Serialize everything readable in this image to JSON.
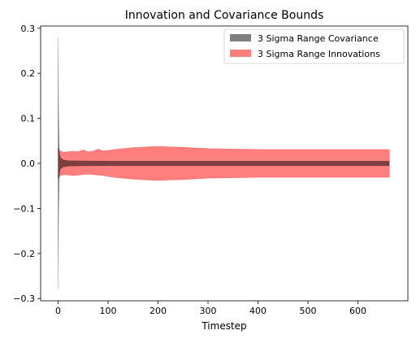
{
  "chart_data": {
    "type": "area",
    "title": "Innovation and Covariance Bounds",
    "xlabel": "Timestep",
    "ylabel": "",
    "xlim": [
      -35,
      700
    ],
    "ylim": [
      -0.305,
      0.305
    ],
    "xticks": [
      0,
      100,
      200,
      300,
      400,
      500,
      600
    ],
    "xtick_labels": [
      "0",
      "100",
      "200",
      "300",
      "400",
      "500",
      "600"
    ],
    "yticks": [
      0.3,
      0.2,
      0.1,
      0.0,
      -0.1,
      -0.2,
      -0.3
    ],
    "ytick_labels": [
      "0.3",
      "0.2",
      "0.1",
      "0.0",
      "−0.1",
      "−0.2",
      "−0.3"
    ],
    "grid": false,
    "legend_position": "top-right",
    "series": [
      {
        "name": "3 Sigma Range Covariance",
        "color": "#000000",
        "opacity": 0.5,
        "x": [
          0,
          1,
          2,
          3,
          5,
          10,
          20,
          50,
          100,
          200,
          300,
          400,
          500,
          600,
          663
        ],
        "upper": [
          0.28,
          0.11,
          0.04,
          0.02,
          0.012,
          0.008,
          0.006,
          0.0055,
          0.005,
          0.005,
          0.005,
          0.005,
          0.005,
          0.005,
          0.005
        ],
        "lower": [
          -0.28,
          -0.11,
          -0.04,
          -0.02,
          -0.012,
          -0.008,
          -0.006,
          -0.0055,
          -0.005,
          -0.005,
          -0.005,
          -0.005,
          -0.005,
          -0.005,
          -0.005
        ]
      },
      {
        "name": "3 Sigma Range Innovations",
        "color": "#ff0000",
        "opacity": 0.5,
        "x": [
          0,
          2,
          5,
          10,
          20,
          30,
          40,
          50,
          60,
          70,
          80,
          90,
          100,
          120,
          150,
          180,
          200,
          220,
          250,
          280,
          300,
          350,
          400,
          450,
          500,
          550,
          600,
          650,
          663
        ],
        "upper": [
          0.035,
          0.03,
          0.027,
          0.025,
          0.026,
          0.027,
          0.026,
          0.03,
          0.026,
          0.027,
          0.032,
          0.028,
          0.029,
          0.032,
          0.035,
          0.037,
          0.038,
          0.037,
          0.036,
          0.034,
          0.033,
          0.032,
          0.031,
          0.031,
          0.031,
          0.031,
          0.031,
          0.031,
          0.031
        ],
        "lower": [
          -0.035,
          -0.03,
          -0.027,
          -0.025,
          -0.026,
          -0.027,
          -0.026,
          -0.025,
          -0.024,
          -0.025,
          -0.026,
          -0.027,
          -0.029,
          -0.032,
          -0.035,
          -0.037,
          -0.038,
          -0.037,
          -0.036,
          -0.034,
          -0.033,
          -0.032,
          -0.031,
          -0.031,
          -0.031,
          -0.031,
          -0.031,
          -0.031,
          -0.031
        ]
      }
    ]
  }
}
